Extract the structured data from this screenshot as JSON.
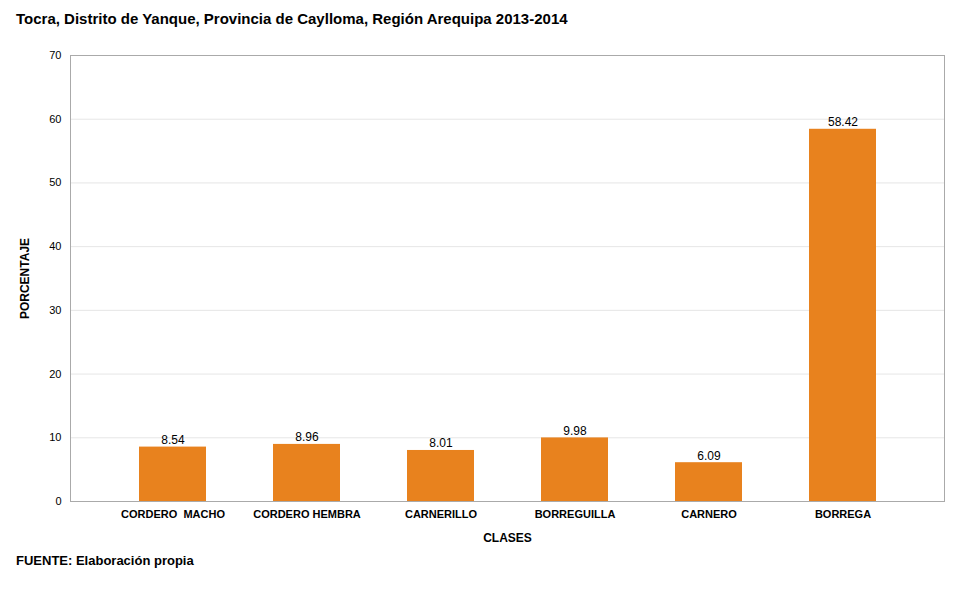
{
  "chart_data": {
    "type": "bar",
    "title": "Tocra, Distrito de Yanque, Provincia de Caylloma, Región Arequipa 2013-2014",
    "footnote": "FUENTE: Elaboración propia",
    "xlabel": "CLASES",
    "ylabel": "PORCENTAJE",
    "categories": [
      "CORDERO  MACHO",
      "CORDERO HEMBRA",
      "CARNERILLO",
      "BORREGUILLA",
      "CARNERO",
      "BORREGA"
    ],
    "values": [
      8.54,
      8.96,
      8.01,
      9.98,
      6.09,
      58.42
    ],
    "color": "#E8821E",
    "ylim": [
      0,
      70
    ],
    "yticks": [
      0,
      10,
      20,
      30,
      40,
      50,
      60,
      70
    ],
    "grid": true,
    "data_labels": true
  }
}
